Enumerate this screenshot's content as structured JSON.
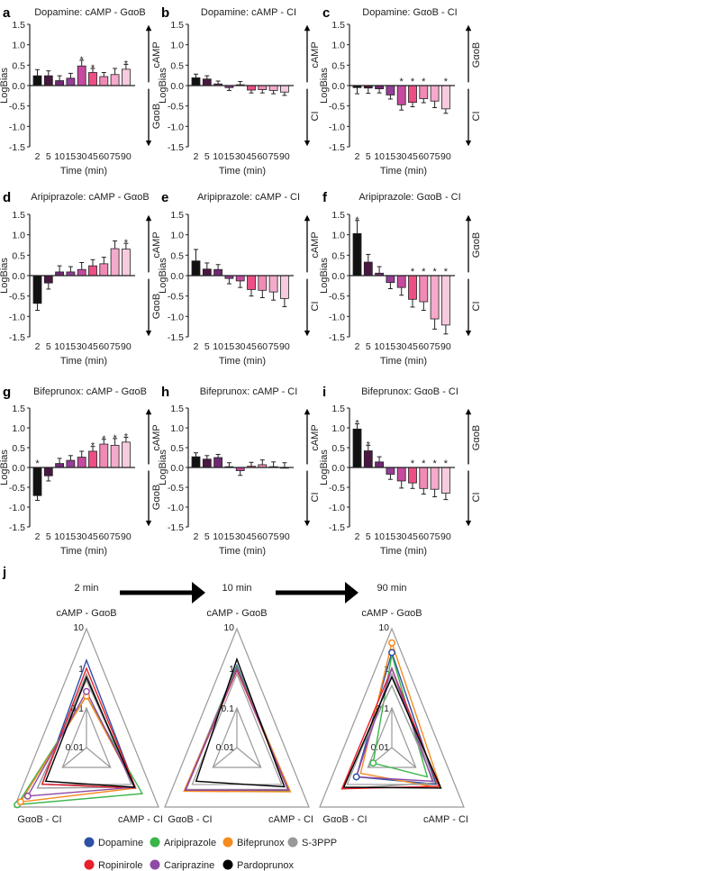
{
  "times": [
    "2",
    "5",
    "10",
    "15",
    "30",
    "45",
    "60",
    "75",
    "90"
  ],
  "bar_colors": [
    "#111111",
    "#4a1741",
    "#6f2a72",
    "#963d97",
    "#c64a9f",
    "#ee4e86",
    "#f08bb6",
    "#f4aacb",
    "#f7cadf"
  ],
  "ylabel": "LogBias",
  "xlabel": "Time (min)",
  "yticks": [
    "1.5",
    "1.0",
    "0.5",
    "0.0",
    "-0.5",
    "-1.0",
    "-1.5"
  ],
  "chart_data": [
    {
      "type": "bar",
      "letter": "a",
      "title": "Dopamine: cAMP - GαoB",
      "up": "cAMP",
      "down": "GαoB",
      "ylim": [
        -1.5,
        1.5
      ],
      "values": [
        0.24,
        0.24,
        0.12,
        0.18,
        0.48,
        0.32,
        0.22,
        0.27,
        0.4
      ],
      "errors": [
        0.15,
        0.12,
        0.12,
        0.12,
        0.14,
        0.1,
        0.1,
        0.15,
        0.12
      ],
      "significant": [
        0,
        0,
        0,
        0,
        1,
        1,
        0,
        0,
        1
      ]
    },
    {
      "type": "bar",
      "letter": "b",
      "title": "Dopamine: cAMP - CI",
      "up": "cAMP",
      "down": "CI",
      "ylim": [
        -1.5,
        1.5
      ],
      "values": [
        0.19,
        0.16,
        0.04,
        -0.05,
        0.02,
        -0.11,
        -0.1,
        -0.12,
        -0.16
      ],
      "errors": [
        0.09,
        0.08,
        0.07,
        0.07,
        0.08,
        0.07,
        0.08,
        0.08,
        0.08
      ],
      "significant": [
        0,
        0,
        0,
        0,
        0,
        0,
        0,
        0,
        0
      ]
    },
    {
      "type": "bar",
      "letter": "c",
      "title": "Dopamine: GαoB - CI",
      "up": "GαoB",
      "down": "CI",
      "ylim": [
        -1.5,
        1.5
      ],
      "values": [
        -0.05,
        -0.06,
        -0.08,
        -0.23,
        -0.47,
        -0.41,
        -0.32,
        -0.38,
        -0.57
      ],
      "errors": [
        0.15,
        0.13,
        0.1,
        0.1,
        0.13,
        0.11,
        0.1,
        0.16,
        0.11
      ],
      "significant": [
        0,
        0,
        0,
        0,
        1,
        1,
        1,
        0,
        1
      ]
    },
    {
      "type": "bar",
      "letter": "d",
      "title": "Aripiprazole: cAMP - GαoB",
      "up": "cAMP",
      "down": "GαoB",
      "ylim": [
        -1.5,
        1.5
      ],
      "values": [
        -0.68,
        -0.18,
        0.09,
        0.09,
        0.15,
        0.24,
        0.29,
        0.66,
        0.65
      ],
      "errors": [
        0.17,
        0.15,
        0.15,
        0.13,
        0.17,
        0.15,
        0.16,
        0.19,
        0.14
      ],
      "significant": [
        0,
        0,
        0,
        0,
        0,
        0,
        0,
        0,
        1
      ]
    },
    {
      "type": "bar",
      "letter": "e",
      "title": "Aripiprazole: cAMP - CI",
      "up": "cAMP",
      "down": "CI",
      "ylim": [
        -1.5,
        1.5
      ],
      "values": [
        0.36,
        0.16,
        0.15,
        -0.07,
        -0.13,
        -0.34,
        -0.36,
        -0.4,
        -0.56
      ],
      "errors": [
        0.28,
        0.15,
        0.12,
        0.13,
        0.16,
        0.16,
        0.18,
        0.2,
        0.2
      ],
      "significant": [
        0,
        0,
        0,
        0,
        0,
        0,
        0,
        0,
        0
      ]
    },
    {
      "type": "bar",
      "letter": "f",
      "title": "Aripiprazole: GαoB - CI",
      "up": "GαoB",
      "down": "CI",
      "ylim": [
        -1.5,
        1.5
      ],
      "values": [
        1.03,
        0.33,
        0.06,
        -0.17,
        -0.29,
        -0.58,
        -0.64,
        -1.06,
        -1.21
      ],
      "errors": [
        0.32,
        0.19,
        0.16,
        0.15,
        0.19,
        0.19,
        0.21,
        0.25,
        0.22
      ],
      "significant": [
        1,
        0,
        0,
        0,
        0,
        1,
        1,
        1,
        1
      ]
    },
    {
      "type": "bar",
      "letter": "g",
      "title": "Bifeprunox: cAMP - GαoB",
      "up": "cAMP",
      "down": "GαoB",
      "ylim": [
        -1.5,
        1.5
      ],
      "values": [
        -0.71,
        -0.21,
        0.1,
        0.18,
        0.26,
        0.41,
        0.59,
        0.56,
        0.64
      ],
      "errors": [
        0.12,
        0.13,
        0.13,
        0.12,
        0.15,
        0.12,
        0.12,
        0.17,
        0.12
      ],
      "significant": [
        1,
        0,
        0,
        0,
        0,
        1,
        1,
        1,
        1
      ]
    },
    {
      "type": "bar",
      "letter": "h",
      "title": "Bifeprunox: cAMP - CI",
      "up": "cAMP",
      "down": "CI",
      "ylim": [
        -1.5,
        1.5
      ],
      "values": [
        0.27,
        0.21,
        0.25,
        0.02,
        -0.08,
        0.03,
        0.07,
        0.02,
        0
      ],
      "errors": [
        0.1,
        0.09,
        0.08,
        0.1,
        0.12,
        0.1,
        0.12,
        0.12,
        0.12
      ],
      "significant": [
        0,
        0,
        0,
        0,
        0,
        0,
        0,
        0,
        0
      ]
    },
    {
      "type": "bar",
      "letter": "i",
      "title": "Bifeprunox: GαoB - CI",
      "up": "GαoB",
      "down": "CI",
      "ylim": [
        -1.5,
        1.5
      ],
      "values": [
        0.97,
        0.42,
        0.14,
        -0.17,
        -0.34,
        -0.39,
        -0.53,
        -0.55,
        -0.65
      ],
      "errors": [
        0.13,
        0.14,
        0.13,
        0.13,
        0.18,
        0.14,
        0.14,
        0.19,
        0.16
      ],
      "significant": [
        1,
        1,
        0,
        0,
        0,
        1,
        1,
        1,
        1
      ]
    }
  ],
  "radar": {
    "letter": "j",
    "axes": [
      "cAMP - GαoB",
      "cAMP - CI",
      "GαoB - CI"
    ],
    "ticks": [
      "10",
      "1",
      "0.1",
      "0.01"
    ],
    "scale": "log",
    "drugs": [
      {
        "name": "Dopamine",
        "color": "#2e4fa3"
      },
      {
        "name": "Aripiprazole",
        "color": "#3ab54a"
      },
      {
        "name": "Bifeprunox",
        "color": "#f68b1f"
      },
      {
        "name": "S-3PPP",
        "color": "#999999"
      },
      {
        "name": "Ropinirole",
        "color": "#e8202a"
      },
      {
        "name": "Cariprazine",
        "color": "#8e4aa5"
      },
      {
        "name": "Pardoprunox",
        "color": "#000000"
      }
    ],
    "panels": [
      {
        "title": "2 min",
        "values": {
          "Dopamine": [
            1.6,
            1.1,
            0.7
          ],
          "Aripiprazole": [
            0.2,
            2.1,
            7.6
          ],
          "Bifeprunox": [
            0.2,
            1.1,
            5.5
          ],
          "S-3PPP": [
            0.5,
            1.0,
            1.1
          ],
          "Ropinirole": [
            1.0,
            1.1,
            0.7
          ],
          "Cariprazine": [
            0.26,
            1.0,
            2.8
          ],
          "Pardoprunox": [
            0.6,
            1.0,
            0.5
          ]
        },
        "markers": [
          [
            "Bifeprunox",
            0
          ],
          [
            "Cariprazine",
            0
          ],
          [
            "Aripiprazole",
            2
          ],
          [
            "Bifeprunox",
            2
          ],
          [
            "Cariprazine",
            2
          ]
        ]
      },
      {
        "title": "10 min",
        "values": {
          "Dopamine": [
            1.2,
            1.5,
            1.5
          ],
          "Aripiprazole": [
            1.1,
            1.6,
            1.5
          ],
          "Bifeprunox": [
            1.0,
            1.7,
            1.6
          ],
          "S-3PPP": [
            1.0,
            1.3,
            1.3
          ],
          "Ropinirole": [
            0.9,
            1.4,
            1.4
          ],
          "Cariprazine": [
            1.0,
            1.4,
            1.4
          ],
          "Pardoprunox": [
            1.7,
            0.95,
            0.5
          ]
        },
        "markers": []
      },
      {
        "title": "90 min",
        "values": {
          "Dopamine": [
            2.5,
            0.7,
            0.3
          ],
          "Aripiprazole": [
            2.2,
            0.3,
            0.06
          ],
          "Bifeprunox": [
            4.4,
            1.1,
            0.2
          ],
          "S-3PPP": [
            0.37,
            0.6,
            1.2
          ],
          "Ropinirole": [
            1.0,
            0.9,
            1.2
          ],
          "Cariprazine": [
            1.0,
            0.5,
            0.3
          ],
          "Pardoprunox": [
            0.6,
            1.1,
            1.0
          ]
        },
        "markers": [
          [
            "Bifeprunox",
            0
          ],
          [
            "Dopamine",
            0
          ],
          [
            "Dopamine",
            2
          ],
          [
            "Aripiprazole",
            2
          ]
        ]
      }
    ]
  }
}
